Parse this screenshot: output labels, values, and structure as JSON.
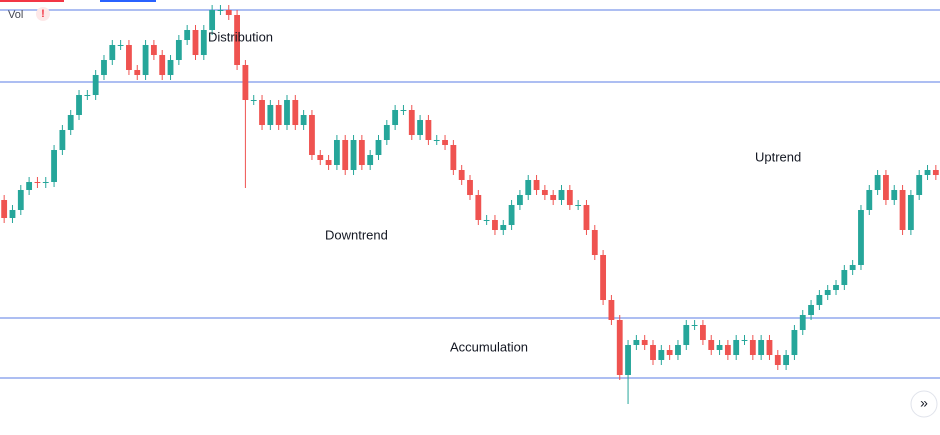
{
  "chart_data": {
    "type": "candlestick",
    "legend_label": "Vol",
    "alert": "!",
    "scroll_button": "»",
    "annotations": [
      "Distribution",
      "Downtrend",
      "Accumulation",
      "Uptrend"
    ],
    "ylim": [
      0,
      435
    ],
    "up_color": "#26a69a",
    "down_color": "#ef5350",
    "level_color": "#5b7ee6",
    "levels": [
      425,
      353,
      117,
      57
    ],
    "open": [
      235,
      217,
      225,
      245,
      253,
      252,
      253,
      285,
      305,
      320,
      340,
      340,
      360,
      375,
      390,
      390,
      365,
      360,
      390,
      380,
      360,
      375,
      395,
      405,
      380,
      405,
      425,
      425,
      420,
      370,
      335,
      335,
      310,
      330,
      310,
      335,
      310,
      320,
      280,
      275,
      270,
      295,
      265,
      295,
      270,
      280,
      295,
      310,
      325,
      325,
      300,
      315,
      295,
      295,
      290,
      265,
      255,
      240,
      215,
      215,
      205,
      210,
      230,
      240,
      255,
      245,
      240,
      235,
      245,
      230,
      230,
      205,
      180,
      135,
      115,
      60,
      90,
      95,
      90,
      75,
      85,
      80,
      90,
      110,
      110,
      95,
      85,
      90,
      80,
      95,
      95,
      80,
      95,
      80,
      70,
      80,
      105,
      120,
      130,
      140,
      145,
      150,
      165,
      170,
      225,
      245,
      260,
      235,
      245,
      205,
      240,
      260,
      265
    ],
    "high": [
      240,
      230,
      250,
      258,
      258,
      258,
      290,
      310,
      325,
      345,
      345,
      365,
      380,
      395,
      395,
      395,
      370,
      395,
      395,
      385,
      380,
      400,
      410,
      410,
      410,
      430,
      430,
      430,
      425,
      375,
      340,
      340,
      335,
      335,
      340,
      340,
      325,
      325,
      285,
      280,
      300,
      300,
      300,
      300,
      285,
      300,
      315,
      330,
      330,
      330,
      320,
      320,
      300,
      300,
      295,
      270,
      260,
      245,
      220,
      220,
      215,
      235,
      245,
      260,
      260,
      250,
      245,
      250,
      250,
      235,
      235,
      210,
      185,
      140,
      120,
      95,
      100,
      100,
      95,
      90,
      90,
      95,
      115,
      115,
      115,
      100,
      95,
      95,
      100,
      100,
      100,
      100,
      100,
      85,
      85,
      110,
      125,
      135,
      145,
      150,
      155,
      170,
      175,
      230,
      250,
      265,
      265,
      250,
      250,
      245,
      265,
      270,
      270
    ],
    "low": [
      212,
      212,
      220,
      240,
      247,
      247,
      248,
      280,
      300,
      315,
      335,
      335,
      355,
      370,
      385,
      360,
      355,
      355,
      375,
      355,
      355,
      370,
      390,
      375,
      375,
      400,
      420,
      415,
      365,
      247,
      330,
      305,
      305,
      305,
      305,
      305,
      305,
      275,
      270,
      265,
      265,
      260,
      260,
      265,
      265,
      275,
      290,
      305,
      320,
      295,
      295,
      290,
      290,
      285,
      260,
      250,
      235,
      210,
      210,
      200,
      200,
      205,
      225,
      235,
      240,
      235,
      230,
      230,
      225,
      225,
      200,
      175,
      130,
      110,
      55,
      31,
      85,
      85,
      70,
      70,
      75,
      75,
      85,
      105,
      90,
      80,
      80,
      75,
      75,
      90,
      75,
      75,
      75,
      65,
      65,
      75,
      100,
      115,
      125,
      135,
      140,
      145,
      160,
      165,
      220,
      240,
      230,
      230,
      200,
      200,
      235,
      255,
      255
    ],
    "close": [
      217,
      225,
      245,
      253,
      252,
      253,
      285,
      305,
      320,
      340,
      340,
      360,
      375,
      390,
      390,
      365,
      360,
      390,
      380,
      360,
      375,
      395,
      405,
      380,
      405,
      425,
      425,
      420,
      370,
      335,
      335,
      310,
      330,
      310,
      335,
      310,
      320,
      280,
      275,
      270,
      295,
      265,
      295,
      270,
      280,
      295,
      310,
      325,
      325,
      300,
      315,
      295,
      295,
      290,
      265,
      255,
      240,
      215,
      215,
      205,
      210,
      230,
      240,
      255,
      245,
      240,
      235,
      245,
      230,
      230,
      205,
      180,
      135,
      115,
      60,
      90,
      95,
      90,
      75,
      85,
      80,
      90,
      110,
      110,
      95,
      85,
      90,
      80,
      95,
      95,
      80,
      95,
      80,
      70,
      80,
      105,
      120,
      130,
      140,
      145,
      150,
      165,
      170,
      225,
      245,
      260,
      235,
      245,
      205,
      240,
      260,
      265,
      260
    ]
  }
}
